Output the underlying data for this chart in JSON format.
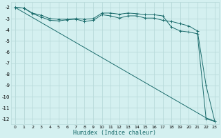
{
  "title": "",
  "xlabel": "Humidex (Indice chaleur)",
  "ylabel": "",
  "bg_color": "#d4f0f0",
  "grid_color": "#b8dada",
  "line_color": "#1a6b6b",
  "marker_color": "#1a6b6b",
  "xlim": [
    -0.5,
    23.5
  ],
  "ylim": [
    -12.5,
    -1.5
  ],
  "yticks": [
    -2,
    -3,
    -4,
    -5,
    -6,
    -7,
    -8,
    -9,
    -10,
    -11,
    -12
  ],
  "xticks": [
    0,
    1,
    2,
    3,
    4,
    5,
    6,
    7,
    8,
    9,
    10,
    11,
    12,
    13,
    14,
    15,
    16,
    17,
    18,
    19,
    20,
    21,
    22,
    23
  ],
  "series1_x": [
    0,
    1,
    2,
    3,
    4,
    5,
    6,
    7,
    8,
    9,
    10,
    11,
    12,
    13,
    14,
    15,
    16,
    17,
    18,
    19,
    20,
    21,
    22,
    23
  ],
  "series1_y": [
    -2.0,
    -2.05,
    -2.5,
    -2.7,
    -3.0,
    -3.05,
    -3.05,
    -3.0,
    -3.05,
    -3.0,
    -2.5,
    -2.5,
    -2.6,
    -2.5,
    -2.55,
    -2.65,
    -2.65,
    -2.75,
    -3.75,
    -4.1,
    -4.2,
    -4.35,
    -12.0,
    -12.2
  ],
  "series2_x": [
    0,
    1,
    2,
    3,
    4,
    5,
    6,
    7,
    8,
    9,
    10,
    11,
    12,
    13,
    14,
    15,
    16,
    17,
    18,
    19,
    20,
    21,
    22,
    23
  ],
  "series2_y": [
    -2.0,
    -2.05,
    -2.55,
    -2.85,
    -3.15,
    -3.2,
    -3.1,
    -3.05,
    -3.25,
    -3.15,
    -2.65,
    -2.75,
    -2.95,
    -2.75,
    -2.75,
    -2.95,
    -2.95,
    -3.15,
    -3.25,
    -3.45,
    -3.65,
    -4.1,
    -9.0,
    -12.2
  ],
  "series_diag_x": [
    0,
    1,
    2,
    3,
    4,
    5,
    6,
    7,
    8,
    9,
    10,
    11,
    12,
    13,
    14,
    15,
    16,
    17,
    18,
    19,
    20,
    21,
    22,
    23
  ],
  "series_diag_y": [
    -2.0,
    -2.45,
    -2.9,
    -3.35,
    -3.8,
    -4.25,
    -4.7,
    -5.15,
    -5.6,
    -6.05,
    -6.5,
    -6.95,
    -7.4,
    -7.85,
    -8.3,
    -8.75,
    -9.2,
    -9.65,
    -10.1,
    -10.55,
    -11.0,
    -11.45,
    -11.9,
    -12.2
  ]
}
